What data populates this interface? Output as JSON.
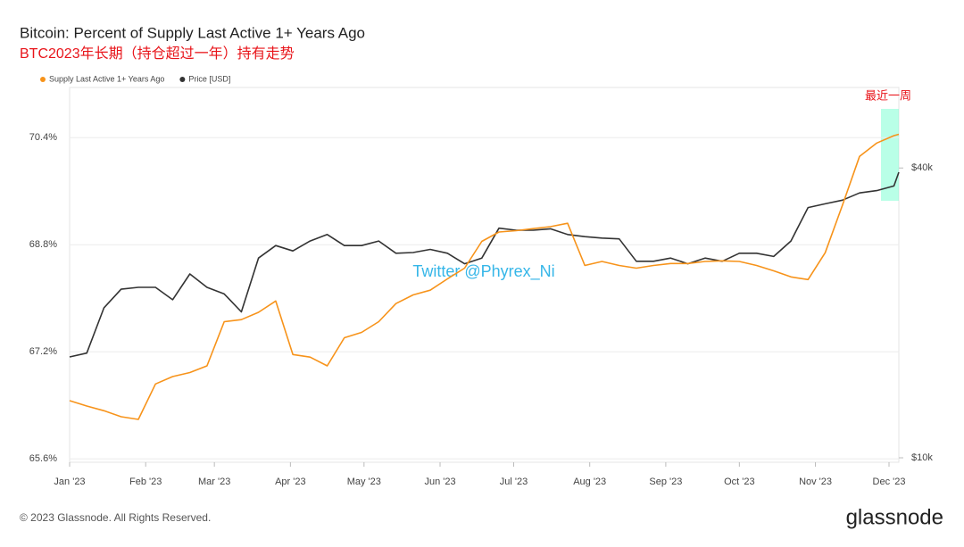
{
  "chart_data": {
    "type": "line",
    "title": "Bitcoin: Percent of Supply Last Active 1+ Years Ago",
    "subtitle": "BTC2023年长期（持仓超过一年）持有走势",
    "annotations": [
      "最近一周",
      "Twitter @Phyrex_Ni"
    ],
    "footer": "© 2023 Glassnode. All Rights Reserved.",
    "brand": "glassnode",
    "x": [
      "2023-01-01",
      "2023-01-08",
      "2023-01-15",
      "2023-01-22",
      "2023-01-29",
      "2023-02-05",
      "2023-02-12",
      "2023-02-19",
      "2023-02-26",
      "2023-03-05",
      "2023-03-12",
      "2023-03-19",
      "2023-03-26",
      "2023-04-02",
      "2023-04-09",
      "2023-04-16",
      "2023-04-23",
      "2023-04-30",
      "2023-05-07",
      "2023-05-14",
      "2023-05-21",
      "2023-05-28",
      "2023-06-04",
      "2023-06-11",
      "2023-06-18",
      "2023-06-25",
      "2023-07-02",
      "2023-07-09",
      "2023-07-16",
      "2023-07-23",
      "2023-07-30",
      "2023-08-06",
      "2023-08-13",
      "2023-08-20",
      "2023-08-27",
      "2023-09-03",
      "2023-09-10",
      "2023-09-17",
      "2023-09-24",
      "2023-10-01",
      "2023-10-08",
      "2023-10-15",
      "2023-10-22",
      "2023-10-29",
      "2023-11-05",
      "2023-11-12",
      "2023-11-19",
      "2023-11-26",
      "2023-12-03",
      "2023-12-05"
    ],
    "series": [
      {
        "name": "Supply Last Active 1+ Years Ago",
        "color": "#f7931a",
        "axis": "y",
        "values": [
          66.47,
          66.39,
          66.32,
          66.23,
          66.19,
          66.72,
          66.83,
          66.89,
          66.99,
          67.65,
          67.68,
          67.79,
          67.96,
          67.16,
          67.12,
          66.99,
          67.41,
          67.49,
          67.65,
          67.92,
          68.05,
          68.12,
          68.29,
          68.45,
          68.85,
          68.99,
          69.01,
          69.04,
          69.07,
          69.12,
          68.49,
          68.55,
          68.49,
          68.45,
          68.49,
          68.52,
          68.52,
          68.55,
          68.56,
          68.55,
          68.49,
          68.41,
          68.32,
          68.28,
          68.68,
          69.39,
          70.12,
          70.32,
          70.43,
          70.45
        ]
      },
      {
        "name": "Price [USD]",
        "color": "#333333",
        "axis": "y2",
        "values": [
          16200,
          16500,
          20500,
          22400,
          22600,
          22600,
          21300,
          24100,
          22600,
          21900,
          20100,
          26000,
          27600,
          26900,
          28200,
          29100,
          27600,
          27600,
          28200,
          26600,
          26700,
          27100,
          26600,
          25300,
          26000,
          30000,
          29700,
          29700,
          29900,
          29100,
          28800,
          28600,
          28500,
          25600,
          25600,
          26000,
          25300,
          26000,
          25600,
          26600,
          26600,
          26200,
          28200,
          33100,
          33700,
          34300,
          35500,
          35900,
          36700,
          39200
        ]
      }
    ],
    "xlim": [
      "2023-01-01",
      "2023-12-05"
    ],
    "xticks": [
      {
        "value": "2023-01-01",
        "label": "Jan '23"
      },
      {
        "value": "2023-02-01",
        "label": "Feb '23"
      },
      {
        "value": "2023-03-01",
        "label": "Mar '23"
      },
      {
        "value": "2023-04-01",
        "label": "Apr '23"
      },
      {
        "value": "2023-05-01",
        "label": "May '23"
      },
      {
        "value": "2023-06-01",
        "label": "Jun '23"
      },
      {
        "value": "2023-07-01",
        "label": "Jul '23"
      },
      {
        "value": "2023-08-01",
        "label": "Aug '23"
      },
      {
        "value": "2023-09-01",
        "label": "Sep '23"
      },
      {
        "value": "2023-10-01",
        "label": "Oct '23"
      },
      {
        "value": "2023-11-01",
        "label": "Nov '23"
      },
      {
        "value": "2023-12-01",
        "label": "Dec '23"
      }
    ],
    "ylim": [
      65.55,
      71.15
    ],
    "yticks": [
      {
        "value": 65.6,
        "label": "65.6%"
      },
      {
        "value": 67.2,
        "label": "67.2%"
      },
      {
        "value": 68.8,
        "label": "68.8%"
      },
      {
        "value": 70.4,
        "label": "70.4%"
      }
    ],
    "y2lim": [
      9790,
      58800
    ],
    "y2scale": "log",
    "y2ticks": [
      {
        "value": 10000,
        "label": "$10k"
      },
      {
        "value": 40000,
        "label": "$40k"
      }
    ],
    "grid": true
  }
}
